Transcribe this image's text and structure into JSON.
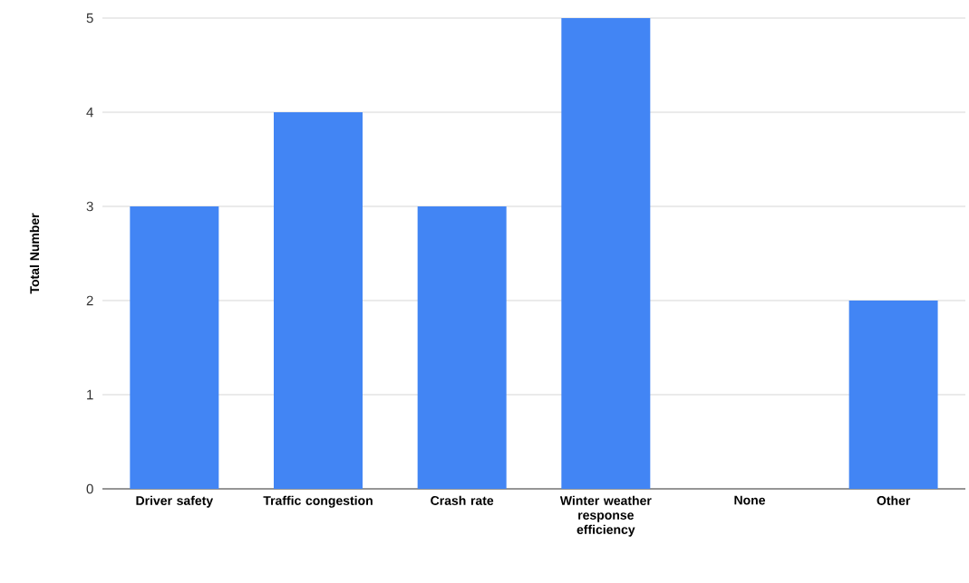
{
  "chart_data": {
    "type": "bar",
    "ylabel": "Total Number",
    "categories": [
      "Driver safety",
      "Traffic congestion",
      "Crash rate",
      "Winter weather response efficiency",
      "None",
      "Other"
    ],
    "values": [
      3,
      4,
      3,
      5,
      0,
      2
    ],
    "color": "#4285f4",
    "ylim": [
      0,
      5
    ],
    "yticks": [
      0,
      1,
      2,
      3,
      4,
      5
    ],
    "grid": "y"
  }
}
